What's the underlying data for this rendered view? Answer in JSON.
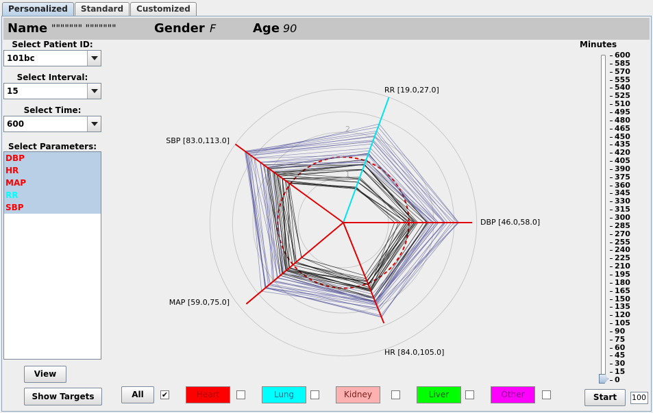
{
  "tabs": [
    "Personalized",
    "Standard",
    "Customized"
  ],
  "header": {
    "name_label": "Name",
    "name_value": "\"\"\"\"\"\"\" \"\"\"\"\"\"\"",
    "gender_label": "Gender",
    "gender_value": "F",
    "age_label": "Age",
    "age_value": "90"
  },
  "sidebar": {
    "patient_label": "Select Patient ID:",
    "patient_value": "101bc",
    "interval_label": "Select Interval:",
    "interval_value": "15",
    "time_label": "Select Time:",
    "time_value": "600",
    "params_label": "Select Parameters:",
    "params": [
      {
        "label": "DBP",
        "color": "#ff0000"
      },
      {
        "label": "HR",
        "color": "#ff0000"
      },
      {
        "label": "MAP",
        "color": "#ff0000"
      },
      {
        "label": "RR",
        "color": "#00ffff"
      },
      {
        "label": "SBP",
        "color": "#ff0000"
      }
    ],
    "view_button": "View",
    "targets_button": "Show Targets"
  },
  "chart_data": {
    "type": "radar",
    "axes": [
      {
        "name": "RR [19.0,27.0]",
        "color": "#00e5ee"
      },
      {
        "name": "DBP [46.0,58.0]",
        "color": "#e00000"
      },
      {
        "name": "HR [84.0,105.0]",
        "color": "#e00000"
      },
      {
        "name": "MAP [59.0,75.0]",
        "color": "#e00000"
      },
      {
        "name": "SBP [83.0,113.0]",
        "color": "#e00000"
      }
    ],
    "ring_labels": [
      "1",
      "2"
    ],
    "target_ring": "dashed red circle at normalized value 1"
  },
  "bottom": {
    "all_button": "All",
    "all_checked": "✔",
    "categories": [
      {
        "label": "Heart",
        "bg": "#ff0000",
        "fg": "#b30000"
      },
      {
        "label": "Lung",
        "bg": "#00ffff",
        "fg": "#1a6a8a"
      },
      {
        "label": "Kidney",
        "bg": "#ffb0b0",
        "fg": "#7a2020"
      },
      {
        "label": "Liver",
        "bg": "#00ff00",
        "fg": "#106010"
      },
      {
        "label": "Other",
        "bg": "#ff00ff",
        "fg": "#8a0a8a"
      }
    ],
    "start_button": "Start",
    "speed_value": "100"
  },
  "minutes": {
    "title": "Minutes",
    "ticks": [
      "600",
      "585",
      "570",
      "555",
      "540",
      "525",
      "510",
      "495",
      "480",
      "465",
      "450",
      "435",
      "420",
      "405",
      "390",
      "375",
      "360",
      "345",
      "330",
      "315",
      "300",
      "285",
      "270",
      "255",
      "240",
      "225",
      "210",
      "195",
      "180",
      "165",
      "150",
      "135",
      "120",
      "105",
      "90",
      "75",
      "60",
      "45",
      "30",
      "15",
      "0"
    ],
    "slider_value": 0
  }
}
